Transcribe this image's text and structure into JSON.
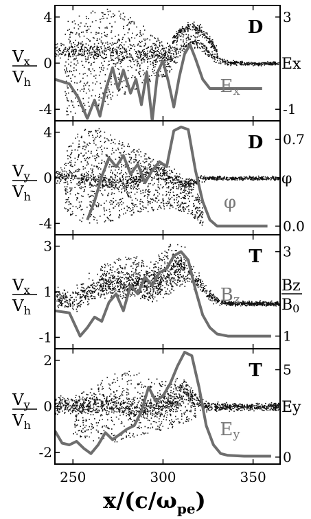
{
  "colors": {
    "scatter": "#111111",
    "curve": "#6e6e6e",
    "frame": "#000000"
  },
  "chart_data": [
    {
      "type": "scatter",
      "panel_label": "D",
      "left_axis": {
        "label_top": "V",
        "label_top_sub": "x",
        "label_bottom": "V",
        "label_bottom_sub": "h",
        "ylim": [
          -5,
          5
        ],
        "ticks": [
          4,
          0,
          -4
        ],
        "tick_labels": [
          "4",
          "0",
          "-4"
        ]
      },
      "right_axis": {
        "label": "Ex",
        "ylim": [
          -1.5,
          3.5
        ],
        "ticks": [
          3,
          -1
        ],
        "tick_labels": [
          "3",
          "-1"
        ]
      },
      "curve_label": "E",
      "curve_label_sub": "x",
      "xlim": [
        240,
        365
      ],
      "series": [
        {
          "style": "band",
          "x": [
            240,
            255,
            270,
            290,
            305,
            315,
            322,
            328,
            335,
            345,
            365
          ],
          "center": [
            1.2,
            1.0,
            0.9,
            0.7,
            0.8,
            2.0,
            1.5,
            0.5,
            0.1,
            0.0,
            0.0
          ],
          "spread": [
            0.8,
            0.9,
            1.0,
            1.0,
            1.0,
            0.8,
            0.6,
            0.4,
            0.25,
            0.2,
            0.2
          ],
          "density": 900
        },
        {
          "style": "cloud",
          "x": [
            245,
            255,
            265,
            275,
            285,
            295,
            305
          ],
          "top": [
            3.5,
            4.3,
            4.8,
            4.6,
            3.8,
            2.4,
            1.6
          ],
          "bottom": [
            -4.5,
            -4.2,
            -3.8,
            -3.2,
            -2.2,
            -1.5,
            -1.0
          ],
          "density": 700
        },
        {
          "style": "band",
          "x": [
            305,
            310,
            315,
            320,
            325,
            330
          ],
          "center": [
            2.0,
            2.8,
            3.2,
            2.9,
            2.2,
            1.0
          ],
          "spread": [
            0.5,
            0.6,
            0.5,
            0.6,
            0.5,
            0.4
          ],
          "density": 250
        }
      ],
      "curve": {
        "axis": "right",
        "x": [
          240,
          248,
          253,
          258,
          262,
          265,
          268,
          272,
          275,
          278,
          282,
          285,
          288,
          291,
          294,
          297,
          300,
          303,
          306,
          309,
          312,
          315,
          318,
          322,
          326,
          330,
          335,
          340,
          345,
          350,
          355
        ],
        "y": [
          0.3,
          0.1,
          -0.5,
          -1.4,
          -0.6,
          -1.3,
          -0.2,
          0.8,
          -0.1,
          0.7,
          -0.3,
          0.3,
          -0.8,
          0.6,
          -1.5,
          0.6,
          1.1,
          0.2,
          -0.9,
          0.4,
          1.4,
          1.8,
          1.2,
          0.3,
          -0.1,
          -0.1,
          -0.1,
          -0.1,
          -0.1,
          -0.1,
          -0.1
        ]
      }
    },
    {
      "type": "scatter",
      "panel_label": "D",
      "left_axis": {
        "label_top": "V",
        "label_top_sub": "y",
        "label_bottom": "V",
        "label_bottom_sub": "h",
        "ylim": [
          -5,
          5
        ],
        "ticks": [
          4,
          0,
          -4
        ],
        "tick_labels": [
          "4",
          "0",
          "-4"
        ]
      },
      "right_axis": {
        "label": "φ",
        "ylim": [
          -0.07,
          0.85
        ],
        "ticks": [
          0.7,
          0.0
        ],
        "tick_labels": [
          "0.7",
          "0.0"
        ]
      },
      "curve_label": "φ",
      "curve_label_sub": "",
      "xlim": [
        240,
        365
      ],
      "series": [
        {
          "style": "band",
          "x": [
            240,
            260,
            280,
            295,
            305,
            315,
            322,
            330,
            340,
            365
          ],
          "center": [
            0.2,
            -0.1,
            -0.6,
            0.8,
            -0.3,
            -0.4,
            0.0,
            0.0,
            0.0,
            0.0
          ],
          "spread": [
            0.8,
            0.8,
            0.8,
            0.8,
            0.7,
            0.5,
            0.3,
            0.2,
            0.2,
            0.2
          ],
          "density": 900
        },
        {
          "style": "cloud",
          "x": [
            245,
            255,
            265,
            275,
            285,
            295,
            305,
            315,
            322
          ],
          "top": [
            2.5,
            4.5,
            4.4,
            3.5,
            2.7,
            1.8,
            1.0,
            -0.5,
            -2.0
          ],
          "bottom": [
            -3.0,
            -4.0,
            -4.0,
            -3.6,
            -3.2,
            -2.8,
            -2.6,
            -3.2,
            -4.2
          ],
          "density": 1100
        }
      ],
      "curve": {
        "axis": "right",
        "x": [
          258,
          262,
          266,
          270,
          274,
          278,
          282,
          286,
          290,
          294,
          298,
          302,
          306,
          310,
          314,
          318,
          322,
          326,
          330,
          340,
          350,
          358
        ],
        "y": [
          0.05,
          0.2,
          0.4,
          0.55,
          0.48,
          0.57,
          0.42,
          0.5,
          0.35,
          0.45,
          0.52,
          0.48,
          0.77,
          0.8,
          0.78,
          0.45,
          0.2,
          0.05,
          0.0,
          0.0,
          0.0,
          0.0
        ]
      }
    },
    {
      "type": "scatter",
      "panel_label": "T",
      "left_axis": {
        "label_top": "V",
        "label_top_sub": "x",
        "label_bottom": "V",
        "label_bottom_sub": "h",
        "ylim": [
          -1.5,
          3.5
        ],
        "ticks": [
          3,
          1,
          -1
        ],
        "tick_labels": [
          "3",
          "1",
          "-1"
        ]
      },
      "right_axis": {
        "label": "Bz",
        "label_bottom": "B",
        "label_bottom_sub": "0",
        "ylim": [
          0.7,
          3.4
        ],
        "ticks": [
          3,
          1
        ],
        "tick_labels": [
          "3",
          "1"
        ]
      },
      "curve_label": "B",
      "curve_label_sub": "z",
      "xlim": [
        240,
        365
      ],
      "series": [
        {
          "style": "band",
          "x": [
            240,
            250,
            260,
            270,
            280,
            290,
            300,
            310,
            318,
            325,
            332,
            340,
            365
          ],
          "center": [
            0.8,
            0.6,
            1.1,
            1.4,
            1.3,
            1.4,
            1.5,
            2.1,
            1.6,
            0.9,
            0.55,
            0.5,
            0.5
          ],
          "spread": [
            0.4,
            0.6,
            0.7,
            0.7,
            0.7,
            0.7,
            0.8,
            0.7,
            0.5,
            0.3,
            0.15,
            0.12,
            0.12
          ],
          "density": 1300
        },
        {
          "style": "cloud",
          "x": [
            265,
            275,
            285,
            295,
            305,
            312
          ],
          "top": [
            2.2,
            2.5,
            2.6,
            2.5,
            3.2,
            3.0
          ],
          "bottom": [
            0.9,
            0.6,
            0.9,
            0.5,
            1.0,
            1.4
          ],
          "density": 500
        }
      ],
      "curve": {
        "axis": "right",
        "x": [
          240,
          248,
          254,
          258,
          262,
          266,
          270,
          274,
          278,
          282,
          286,
          290,
          294,
          298,
          302,
          306,
          310,
          314,
          318,
          322,
          326,
          330,
          336,
          345,
          355,
          360
        ],
        "y": [
          1.6,
          1.55,
          1.0,
          1.2,
          1.45,
          1.35,
          1.8,
          2.0,
          1.6,
          2.2,
          2.0,
          2.4,
          2.2,
          2.5,
          2.6,
          2.9,
          3.0,
          2.8,
          2.1,
          1.5,
          1.2,
          1.05,
          1.0,
          1.0,
          1.0,
          1.0
        ]
      }
    },
    {
      "type": "scatter",
      "panel_label": "T",
      "left_axis": {
        "label_top": "V",
        "label_top_sub": "y",
        "label_bottom": "V",
        "label_bottom_sub": "h",
        "ylim": [
          -2.5,
          2.5
        ],
        "ticks": [
          2,
          0,
          -2
        ],
        "tick_labels": [
          "2",
          "0",
          "-2"
        ]
      },
      "right_axis": {
        "label": "Ey",
        "ylim": [
          -0.4,
          6.2
        ],
        "ticks": [
          5,
          0
        ],
        "tick_labels": [
          "5",
          "0"
        ]
      },
      "curve_label": "E",
      "curve_label_sub": "y",
      "xlim": [
        240,
        365
      ],
      "series": [
        {
          "style": "band",
          "x": [
            240,
            255,
            270,
            285,
            295,
            305,
            312,
            318,
            325,
            335,
            365
          ],
          "center": [
            0.1,
            0.0,
            0.1,
            -0.1,
            0.0,
            0.2,
            0.6,
            0.3,
            0.0,
            0.0,
            0.0
          ],
          "spread": [
            0.5,
            0.5,
            0.5,
            0.5,
            0.5,
            0.6,
            0.6,
            0.4,
            0.25,
            0.2,
            0.2
          ],
          "density": 1300
        },
        {
          "style": "cloud",
          "x": [
            250,
            260,
            270,
            280,
            290,
            300,
            310,
            318
          ],
          "top": [
            0.5,
            0.8,
            1.4,
            1.6,
            1.4,
            1.1,
            1.3,
            0.6
          ],
          "bottom": [
            -1.2,
            -1.5,
            -1.6,
            -1.4,
            -1.2,
            -1.0,
            -0.8,
            -0.5
          ],
          "density": 600
        }
      ],
      "curve": {
        "axis": "right",
        "x": [
          240,
          244,
          248,
          252,
          256,
          260,
          264,
          268,
          272,
          276,
          280,
          284,
          288,
          292,
          296,
          300,
          304,
          308,
          312,
          316,
          320,
          324,
          328,
          332,
          336,
          345,
          355,
          360
        ],
        "y": [
          1.5,
          0.8,
          0.7,
          0.9,
          0.5,
          0.2,
          0.7,
          1.4,
          1.0,
          1.3,
          1.6,
          1.8,
          2.6,
          4.0,
          3.2,
          3.5,
          4.2,
          5.2,
          6.0,
          5.8,
          4.0,
          1.8,
          0.7,
          0.2,
          0.1,
          0.05,
          0.05,
          0.05
        ]
      }
    }
  ],
  "x_axis": {
    "ticks": [
      250,
      300,
      350
    ],
    "tick_labels": [
      "250",
      "300",
      "350"
    ],
    "label_main": "x/(c/ω",
    "label_sub": "pe",
    "label_close": ")"
  }
}
